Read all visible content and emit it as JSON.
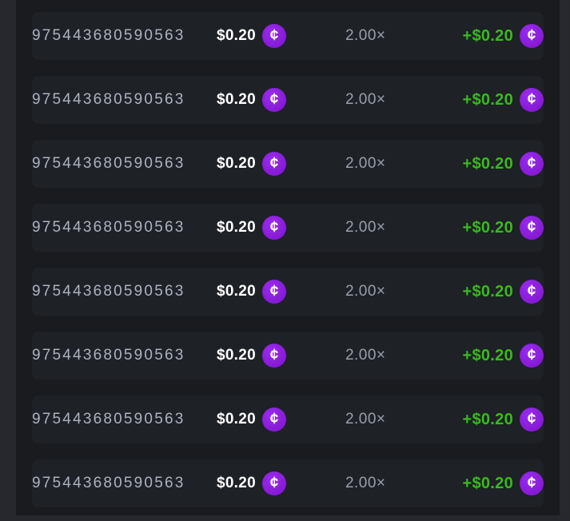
{
  "coin": {
    "symbol": "¢",
    "name": "cash-coin"
  },
  "colors": {
    "page_bg": "#26282d",
    "table_bg": "#191b1f",
    "row_bg": "#1e2126",
    "id_text": "#adb3be",
    "multiplier_text": "#99a0aa",
    "bet_text": "#ffffff",
    "payout_green": "#38b91e",
    "coin_purple": "#8a1ed9"
  },
  "rows": [
    {
      "id": "975443680590563",
      "bet": "$0.20",
      "multiplier": "2.00×",
      "payout": "+$0.20"
    },
    {
      "id": "975443680590563",
      "bet": "$0.20",
      "multiplier": "2.00×",
      "payout": "+$0.20"
    },
    {
      "id": "975443680590563",
      "bet": "$0.20",
      "multiplier": "2.00×",
      "payout": "+$0.20"
    },
    {
      "id": "975443680590563",
      "bet": "$0.20",
      "multiplier": "2.00×",
      "payout": "+$0.20"
    },
    {
      "id": "975443680590563",
      "bet": "$0.20",
      "multiplier": "2.00×",
      "payout": "+$0.20"
    },
    {
      "id": "975443680590563",
      "bet": "$0.20",
      "multiplier": "2.00×",
      "payout": "+$0.20"
    },
    {
      "id": "975443680590563",
      "bet": "$0.20",
      "multiplier": "2.00×",
      "payout": "+$0.20"
    },
    {
      "id": "975443680590563",
      "bet": "$0.20",
      "multiplier": "2.00×",
      "payout": "+$0.20"
    }
  ]
}
